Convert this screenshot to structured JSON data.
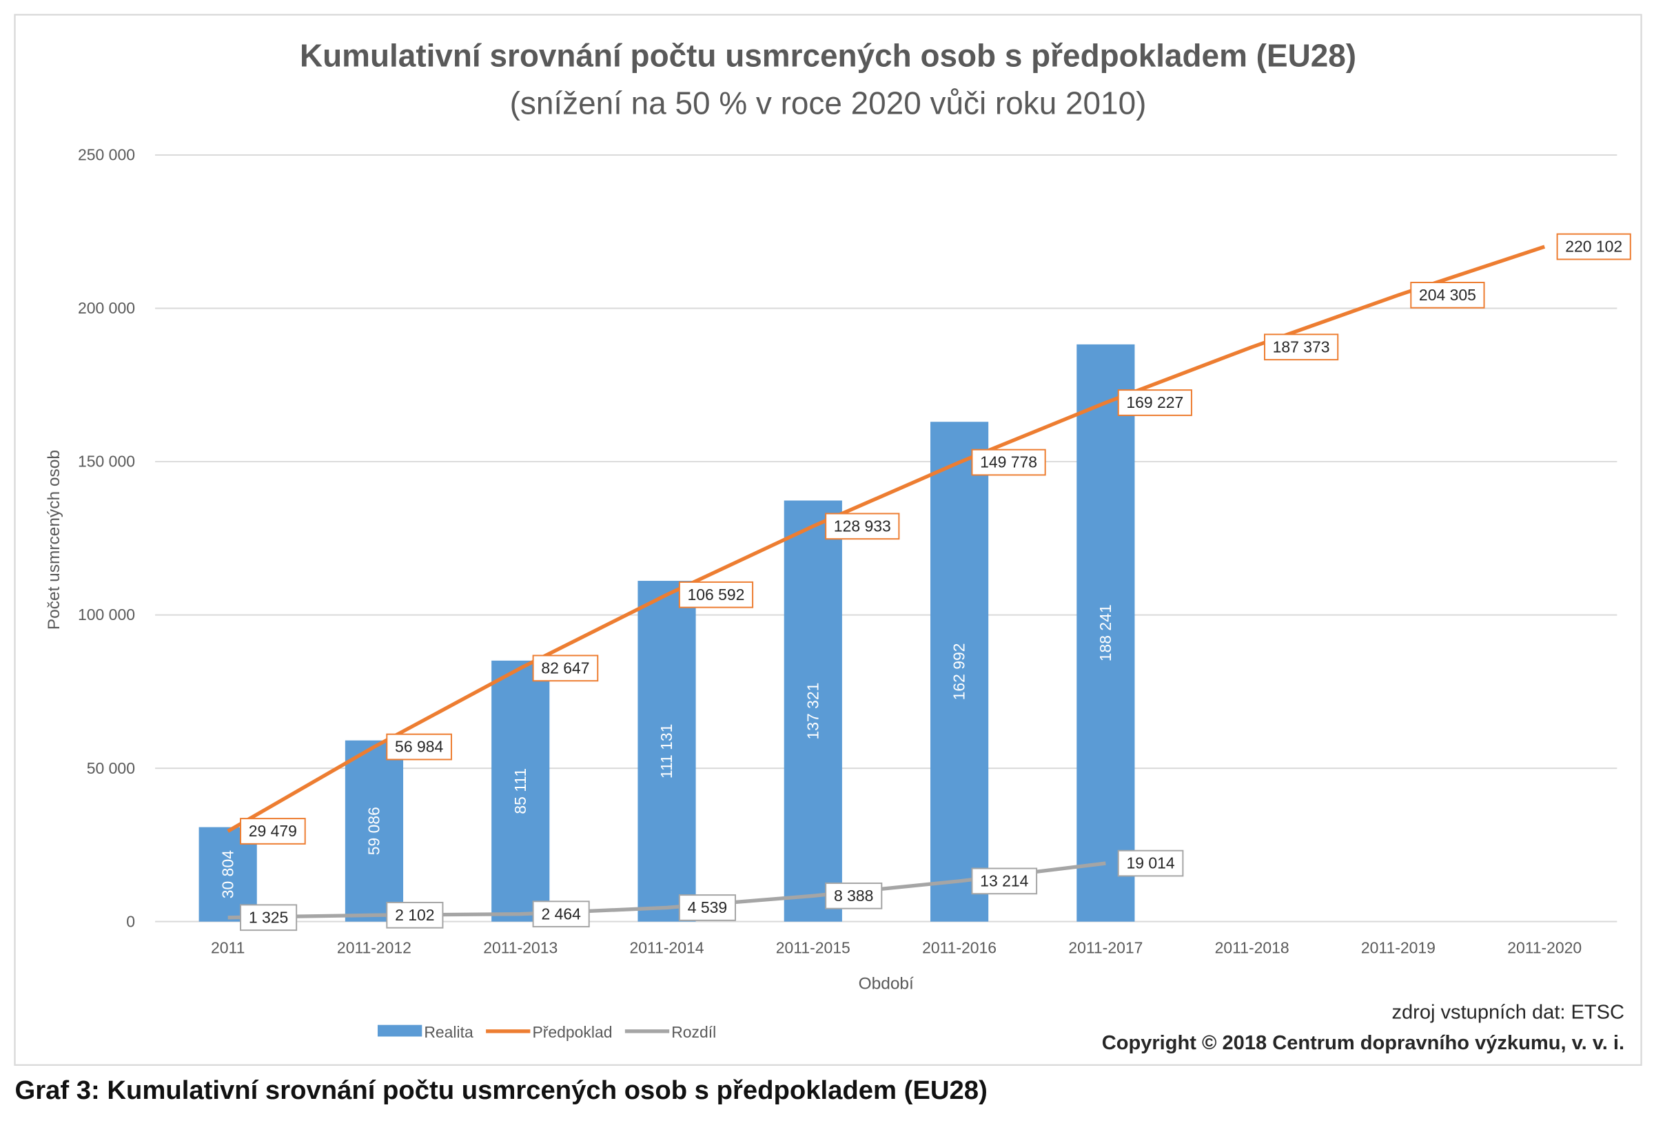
{
  "caption": "Graf 3: Kumulativní srovnání počtu usmrcených osob s předpokladem (EU28)",
  "source": "zdroj vstupních dat: ETSC",
  "copyright": "Copyright © 2018  Centrum dopravního výzkumu, v. v. i.",
  "chart_data": {
    "type": "bar+line",
    "title": "Kumulativní srovnání počtu usmrcených osob s předpokladem (EU28)",
    "subtitle": "(snížení na 50 % v roce 2020 vůči roku 2010)",
    "xlabel": "Období",
    "ylabel": "Počet usmrcených osob",
    "ylim": [
      0,
      250000
    ],
    "yticks": [
      0,
      50000,
      100000,
      150000,
      200000,
      250000
    ],
    "ytick_labels": [
      "0",
      "50 000",
      "100 000",
      "150 000",
      "200 000",
      "250 000"
    ],
    "grid": true,
    "legend_position": "bottom",
    "categories": [
      "2011",
      "2011-2012",
      "2011-2013",
      "2011-2014",
      "2011-2015",
      "2011-2016",
      "2011-2017",
      "2011-2018",
      "2011-2019",
      "2011-2020"
    ],
    "series": [
      {
        "name": "Realita",
        "kind": "bar",
        "color": "#5b9bd5",
        "values": [
          30804,
          59086,
          85111,
          111131,
          137321,
          162992,
          188241,
          null,
          null,
          null
        ],
        "labels": [
          "30 804",
          "59 086",
          "85 111",
          "111 131",
          "137 321",
          "162 992",
          "188 241",
          null,
          null,
          null
        ]
      },
      {
        "name": "Předpoklad",
        "kind": "line",
        "color": "#ed7d31",
        "values": [
          29479,
          56984,
          82647,
          106592,
          128933,
          149778,
          169227,
          187373,
          204305,
          220102
        ],
        "labels": [
          "29 479",
          "56 984",
          "82 647",
          "106 592",
          "128 933",
          "149 778",
          "169 227",
          "187 373",
          "204 305",
          "220 102"
        ]
      },
      {
        "name": "Rozdíl",
        "kind": "line",
        "color": "#a5a5a5",
        "values": [
          1325,
          2102,
          2464,
          4539,
          8388,
          13214,
          19014,
          null,
          null,
          null
        ],
        "labels": [
          "1 325",
          "2 102",
          "2 464",
          "4 539",
          "8 388",
          "13 214",
          "19 014",
          null,
          null,
          null
        ]
      }
    ]
  }
}
